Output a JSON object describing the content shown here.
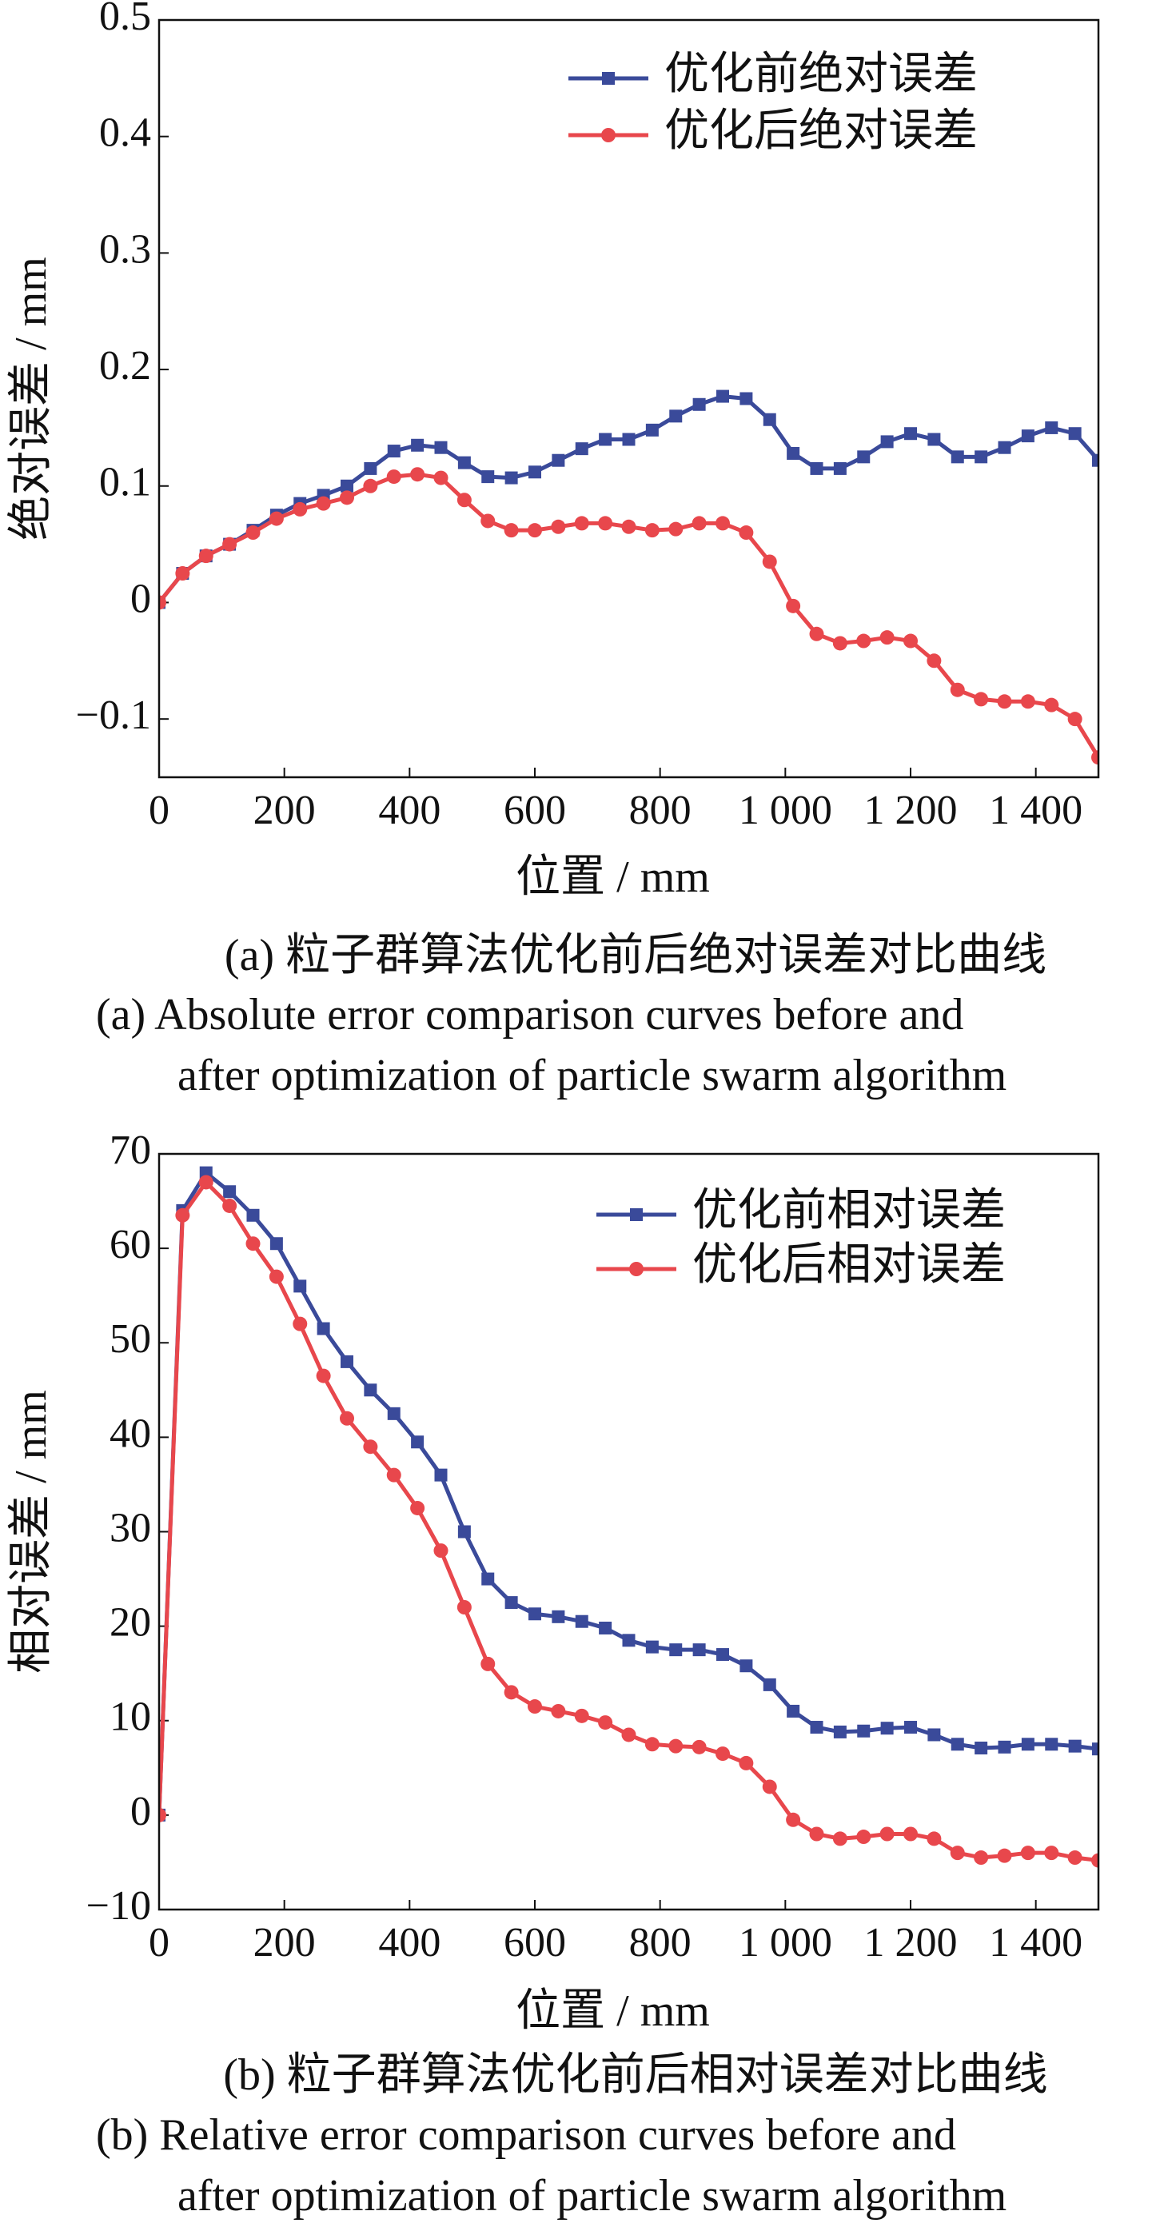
{
  "chart_data": [
    {
      "type": "line",
      "x_label": "位置 / mm",
      "y_label": "绝对误差 / mm",
      "caption_zh": "(a)  粒子群算法优化前后绝对误差对比曲线",
      "caption_en": [
        "(a)  Absolute error comparison curves before and",
        "after optimization of particle swarm algorithm"
      ],
      "x": [
        0,
        37.5,
        75,
        112.5,
        150,
        187.5,
        225,
        262.5,
        300,
        337.5,
        375,
        412.5,
        450,
        487.5,
        525,
        562.5,
        600,
        637.5,
        675,
        712.5,
        750,
        787.5,
        825,
        862.5,
        900,
        937.5,
        975,
        1012.5,
        1050,
        1087.5,
        1125,
        1162.5,
        1200,
        1237.5,
        1275,
        1312.5,
        1350,
        1387.5,
        1425,
        1462.5,
        1500
      ],
      "xlim": [
        0,
        1500
      ],
      "xticks": [
        0,
        200,
        400,
        600,
        800,
        {
          "value": 1000,
          "label": "1 000"
        },
        {
          "value": 1200,
          "label": "1 200"
        },
        {
          "value": 1400,
          "label": "1 400"
        }
      ],
      "ylim": [
        -0.15,
        0.5
      ],
      "yticks": [
        {
          "value": -0.1,
          "label": "−0.1"
        },
        0,
        0.1,
        0.2,
        0.3,
        0.4,
        0.5
      ],
      "legend": "upper right",
      "series": [
        {
          "name": "优化前绝对误差",
          "color": "#3a4a9a",
          "marker": "square",
          "values": [
            0,
            0.025,
            0.04,
            0.05,
            0.062,
            0.075,
            0.085,
            0.092,
            0.1,
            0.115,
            0.13,
            0.135,
            0.133,
            0.12,
            0.108,
            0.107,
            0.112,
            0.122,
            0.132,
            0.14,
            0.14,
            0.148,
            0.16,
            0.17,
            0.177,
            0.175,
            0.157,
            0.128,
            0.115,
            0.115,
            0.125,
            0.138,
            0.145,
            0.14,
            0.125,
            0.125,
            0.133,
            0.143,
            0.15,
            0.145,
            0.122
          ]
        },
        {
          "name": "优化后绝对误差",
          "color": "#e8474c",
          "marker": "circle",
          "values": [
            0,
            0.025,
            0.04,
            0.05,
            0.06,
            0.072,
            0.08,
            0.085,
            0.09,
            0.1,
            0.108,
            0.11,
            0.107,
            0.088,
            0.07,
            0.062,
            0.062,
            0.065,
            0.068,
            0.068,
            0.065,
            0.062,
            0.063,
            0.068,
            0.068,
            0.06,
            0.035,
            -0.003,
            -0.027,
            -0.035,
            -0.033,
            -0.03,
            -0.033,
            -0.05,
            -0.075,
            -0.083,
            -0.085,
            -0.085,
            -0.088,
            -0.1,
            -0.133
          ]
        }
      ]
    },
    {
      "type": "line",
      "x_label": "位置 / mm",
      "y_label": "相对误差 / mm",
      "caption_zh": "(b)  粒子群算法优化前后相对误差对比曲线",
      "caption_en": [
        "(b)  Relative error comparison curves before and",
        "after optimization of particle swarm algorithm"
      ],
      "x": [
        0,
        37.5,
        75,
        112.5,
        150,
        187.5,
        225,
        262.5,
        300,
        337.5,
        375,
        412.5,
        450,
        487.5,
        525,
        562.5,
        600,
        637.5,
        675,
        712.5,
        750,
        787.5,
        825,
        862.5,
        900,
        937.5,
        975,
        1012.5,
        1050,
        1087.5,
        1125,
        1162.5,
        1200,
        1237.5,
        1275,
        1312.5,
        1350,
        1387.5,
        1425,
        1462.5,
        1500
      ],
      "xlim": [
        0,
        1500
      ],
      "xticks": [
        0,
        200,
        400,
        600,
        800,
        {
          "value": 1000,
          "label": "1 000"
        },
        {
          "value": 1200,
          "label": "1 200"
        },
        {
          "value": 1400,
          "label": "1 400"
        }
      ],
      "ylim": [
        -10,
        70
      ],
      "yticks": [
        {
          "value": -10,
          "label": "−10"
        },
        0,
        10,
        20,
        30,
        40,
        50,
        60,
        70
      ],
      "legend": "upper right",
      "series": [
        {
          "name": "优化前相对误差",
          "color": "#3a4a9a",
          "marker": "square",
          "values": [
            0,
            64,
            68,
            66,
            63.5,
            60.5,
            56,
            51.5,
            48,
            45,
            42.5,
            39.5,
            36,
            30,
            25,
            22.5,
            21.3,
            21,
            20.5,
            19.8,
            18.5,
            17.8,
            17.5,
            17.5,
            17,
            15.8,
            13.8,
            11,
            9.3,
            8.8,
            8.9,
            9.2,
            9.3,
            8.5,
            7.5,
            7.1,
            7.2,
            7.5,
            7.5,
            7.3,
            7
          ]
        },
        {
          "name": "优化后相对误差",
          "color": "#e8474c",
          "marker": "circle",
          "values": [
            0,
            63.5,
            67,
            64.5,
            60.5,
            57,
            52,
            46.5,
            42,
            39,
            36,
            32.5,
            28,
            22,
            16,
            13,
            11.5,
            11,
            10.5,
            9.8,
            8.5,
            7.5,
            7.3,
            7.2,
            6.5,
            5.5,
            3,
            -0.5,
            -2,
            -2.5,
            -2.3,
            -2,
            -2,
            -2.5,
            -4,
            -4.5,
            -4.3,
            -4,
            -4,
            -4.5,
            -4.8
          ]
        }
      ]
    }
  ]
}
